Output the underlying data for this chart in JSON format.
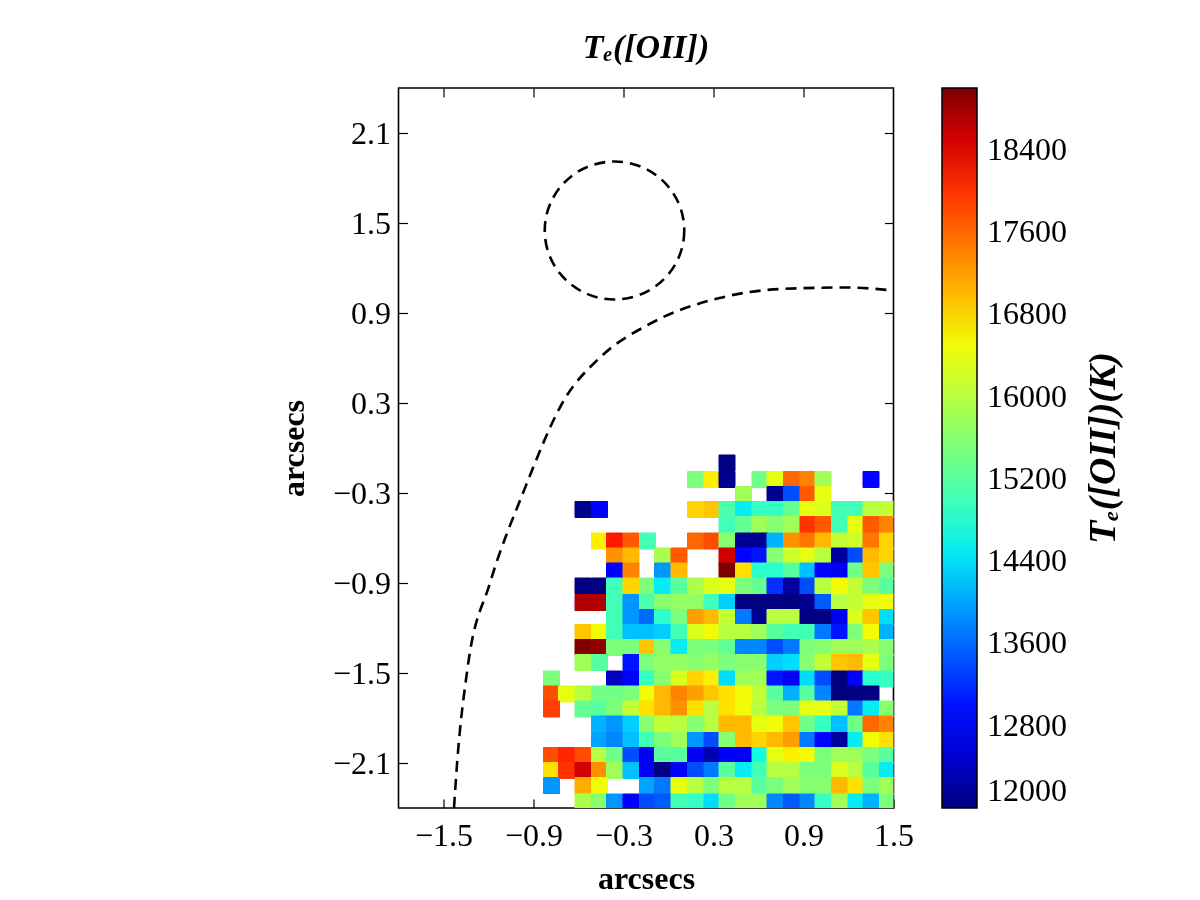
{
  "chart_data": {
    "type": "scatter",
    "title": "Tₑ([OII])",
    "xlabel": "arcsecs",
    "ylabel": "arcsecs",
    "clabel": "Tₑ([OII])(K)",
    "xlim": [
      -1.8,
      1.5
    ],
    "ylim": [
      -2.4,
      2.4
    ],
    "xticks": [
      -1.5,
      -0.9,
      -0.3,
      0.3,
      0.9,
      1.5
    ],
    "yticks": [
      -2.1,
      -1.5,
      -0.9,
      -0.3,
      0.3,
      0.9,
      1.5,
      2.1
    ],
    "clim": [
      12000,
      19000
    ],
    "cticks": [
      12000,
      12800,
      13600,
      14400,
      15200,
      16000,
      16800,
      17600,
      18400
    ],
    "marker": "square",
    "x": [
      0.39,
      0.18,
      0.29,
      0.39,
      0.61,
      0.71,
      0.82,
      0.93,
      1.03,
      1.35,
      0.5,
      0.71,
      0.82,
      0.93,
      1.03,
      -0.57,
      -0.46,
      0.18,
      0.29,
      0.39,
      0.5,
      0.61,
      0.71,
      0.82,
      0.93,
      1.03,
      1.14,
      1.25,
      1.35,
      1.46,
      0.39,
      0.5,
      0.61,
      0.71,
      0.82,
      0.93,
      1.03,
      1.14,
      1.25,
      1.35,
      1.46,
      -0.46,
      -0.36,
      -0.25,
      -0.14,
      0.18,
      0.29,
      0.39,
      0.5,
      0.61,
      0.71,
      0.82,
      0.93,
      1.03,
      1.14,
      1.25,
      1.35,
      1.46,
      -0.36,
      -0.25,
      -0.04,
      0.07,
      0.39,
      0.5,
      0.61,
      0.71,
      0.82,
      0.93,
      1.03,
      1.14,
      1.25,
      1.35,
      1.46,
      -0.36,
      -0.25,
      -0.04,
      0.07,
      0.39,
      0.5,
      0.61,
      0.71,
      0.82,
      0.93,
      1.03,
      1.14,
      1.25,
      1.35,
      1.46,
      -0.57,
      -0.46,
      -0.36,
      -0.25,
      -0.14,
      -0.04,
      0.07,
      0.18,
      0.29,
      0.39,
      0.5,
      0.61,
      0.71,
      0.82,
      0.93,
      1.03,
      1.14,
      1.25,
      1.35,
      1.46,
      -0.57,
      -0.46,
      -0.36,
      -0.25,
      -0.14,
      -0.04,
      0.07,
      0.18,
      0.29,
      0.39,
      0.5,
      0.61,
      0.71,
      0.82,
      0.93,
      1.03,
      1.14,
      1.25,
      1.35,
      1.46,
      -0.36,
      -0.25,
      -0.14,
      -0.04,
      0.07,
      0.18,
      0.29,
      0.39,
      0.5,
      0.61,
      0.71,
      0.82,
      0.93,
      1.03,
      1.14,
      1.25,
      1.35,
      1.46,
      -0.57,
      -0.46,
      -0.36,
      -0.25,
      -0.14,
      -0.04,
      0.07,
      0.18,
      0.29,
      0.39,
      0.5,
      0.61,
      0.71,
      0.82,
      0.93,
      1.03,
      1.14,
      1.25,
      1.35,
      1.46,
      -0.57,
      -0.46,
      -0.36,
      -0.25,
      -0.14,
      -0.04,
      0.07,
      0.18,
      0.29,
      0.39,
      0.5,
      0.61,
      0.71,
      0.82,
      0.93,
      1.03,
      1.14,
      1.25,
      1.35,
      1.46,
      -0.57,
      -0.46,
      -0.25,
      -0.14,
      -0.04,
      0.07,
      0.18,
      0.29,
      0.39,
      0.5,
      0.61,
      0.71,
      0.82,
      0.93,
      1.03,
      1.14,
      1.25,
      1.35,
      1.46,
      -0.78,
      -0.36,
      -0.25,
      -0.14,
      -0.04,
      0.07,
      0.18,
      0.29,
      0.39,
      0.5,
      0.61,
      0.71,
      0.82,
      0.93,
      1.03,
      1.14,
      1.25,
      1.35,
      1.46,
      -0.78,
      -0.68,
      -0.57,
      -0.46,
      -0.36,
      -0.25,
      -0.14,
      -0.04,
      0.07,
      0.18,
      0.29,
      0.39,
      0.5,
      0.61,
      0.71,
      0.82,
      0.93,
      1.03,
      1.14,
      1.25,
      1.35,
      -0.78,
      -0.57,
      -0.46,
      -0.36,
      -0.25,
      -0.14,
      -0.04,
      0.07,
      0.18,
      0.29,
      0.39,
      0.5,
      0.61,
      0.71,
      0.82,
      0.93,
      1.03,
      1.14,
      1.25,
      1.35,
      1.46,
      -0.46,
      -0.36,
      -0.25,
      -0.14,
      -0.04,
      0.07,
      0.18,
      0.29,
      0.39,
      0.5,
      0.61,
      0.71,
      0.82,
      0.93,
      1.03,
      1.14,
      1.25,
      1.35,
      1.46,
      -0.46,
      -0.36,
      -0.25,
      -0.14,
      -0.04,
      0.07,
      0.18,
      0.29,
      0.39,
      0.5,
      0.61,
      0.71,
      0.82,
      0.93,
      1.03,
      1.14,
      1.25,
      1.35,
      1.46,
      -0.78,
      -0.68,
      -0.57,
      -0.46,
      -0.36,
      -0.25,
      -0.14,
      -0.04,
      0.07,
      0.18,
      0.29,
      0.39,
      0.5,
      0.61,
      0.71,
      0.82,
      0.93,
      1.03,
      1.14,
      1.25,
      1.35,
      1.46,
      -0.78,
      -0.68,
      -0.57,
      -0.46,
      -0.36,
      -0.25,
      -0.14,
      -0.04,
      0.07,
      0.18,
      0.29,
      0.39,
      0.5,
      0.61,
      0.71,
      0.82,
      0.93,
      1.03,
      1.14,
      1.25,
      1.35,
      1.46,
      -0.78,
      -0.57,
      -0.46,
      -0.14,
      -0.04,
      0.07,
      0.18,
      0.29,
      0.39,
      0.5,
      0.61,
      0.71,
      0.82,
      0.93,
      1.03,
      1.14,
      1.25,
      1.35,
      1.46,
      -0.57,
      -0.46,
      -0.36,
      -0.25,
      -0.14,
      -0.04,
      0.07,
      0.18,
      0.29,
      0.39,
      0.5,
      0.61,
      0.71,
      0.82,
      0.93,
      1.03,
      1.14,
      1.25,
      1.35,
      1.46
    ],
    "values": [
      -0.1,
      -0.21,
      -0.21,
      -0.21,
      -0.21,
      -0.21,
      -0.21,
      -0.21,
      -0.21,
      -0.21,
      -0.31,
      -0.31,
      -0.31,
      -0.31,
      -0.31,
      -0.41,
      -0.41,
      -0.41,
      -0.41,
      -0.41,
      -0.41,
      -0.41,
      -0.41,
      -0.41,
      -0.41,
      -0.41,
      -0.41,
      -0.41,
      -0.41,
      -0.41,
      -0.51,
      -0.51,
      -0.51,
      -0.51,
      -0.51,
      -0.51,
      -0.51,
      -0.51,
      -0.51,
      -0.51,
      -0.51,
      -0.62,
      -0.62,
      -0.62,
      -0.62,
      -0.62,
      -0.62,
      -0.62,
      -0.62,
      -0.62,
      -0.62,
      -0.62,
      -0.62,
      -0.62,
      -0.62,
      -0.62,
      -0.62,
      -0.62,
      -0.72,
      -0.72,
      -0.72,
      -0.72,
      -0.72,
      -0.72,
      -0.72,
      -0.72,
      -0.72,
      -0.72,
      -0.72,
      -0.72,
      -0.72,
      -0.72,
      -0.72,
      -0.82,
      -0.82,
      -0.82,
      -0.82,
      -0.82,
      -0.82,
      -0.82,
      -0.82,
      -0.82,
      -0.82,
      -0.82,
      -0.82,
      -0.82,
      -0.82,
      -0.82,
      -0.92,
      -0.92,
      -0.92,
      -0.92,
      -0.92,
      -0.92,
      -0.92,
      -0.92,
      -0.92,
      -0.92,
      -0.92,
      -0.92,
      -0.92,
      -0.92,
      -0.92,
      -0.92,
      -0.92,
      -0.92,
      -0.92,
      -0.92,
      -1.03,
      -1.03,
      -1.03,
      -1.03,
      -1.03,
      -1.03,
      -1.03,
      -1.03,
      -1.03,
      -1.03,
      -1.03,
      -1.03,
      -1.03,
      -1.03,
      -1.03,
      -1.03,
      -1.03,
      -1.03,
      -1.03,
      -1.03,
      -1.13,
      -1.13,
      -1.13,
      -1.13,
      -1.13,
      -1.13,
      -1.13,
      -1.13,
      -1.13,
      -1.13,
      -1.13,
      -1.13,
      -1.13,
      -1.13,
      -1.13,
      -1.13,
      -1.13,
      -1.13,
      -1.23,
      -1.23,
      -1.23,
      -1.23,
      -1.23,
      -1.23,
      -1.23,
      -1.23,
      -1.23,
      -1.23,
      -1.23,
      -1.23,
      -1.23,
      -1.23,
      -1.23,
      -1.23,
      -1.23,
      -1.23,
      -1.23,
      -1.23,
      -1.33,
      -1.33,
      -1.33,
      -1.33,
      -1.33,
      -1.33,
      -1.33,
      -1.33,
      -1.33,
      -1.33,
      -1.33,
      -1.33,
      -1.33,
      -1.33,
      -1.33,
      -1.33,
      -1.33,
      -1.33,
      -1.33,
      -1.33,
      -1.43,
      -1.43,
      -1.43,
      -1.43,
      -1.43,
      -1.43,
      -1.43,
      -1.43,
      -1.43,
      -1.43,
      -1.43,
      -1.43,
      -1.43,
      -1.43,
      -1.43,
      -1.43,
      -1.43,
      -1.43,
      -1.43,
      -1.54,
      -1.54,
      -1.54,
      -1.54,
      -1.54,
      -1.54,
      -1.54,
      -1.54,
      -1.54,
      -1.54,
      -1.54,
      -1.54,
      -1.54,
      -1.54,
      -1.54,
      -1.54,
      -1.54,
      -1.54,
      -1.54,
      -1.64,
      -1.64,
      -1.64,
      -1.64,
      -1.64,
      -1.64,
      -1.64,
      -1.64,
      -1.64,
      -1.64,
      -1.64,
      -1.64,
      -1.64,
      -1.64,
      -1.64,
      -1.64,
      -1.64,
      -1.64,
      -1.64,
      -1.64,
      -1.64,
      -1.74,
      -1.74,
      -1.74,
      -1.74,
      -1.74,
      -1.74,
      -1.74,
      -1.74,
      -1.74,
      -1.74,
      -1.74,
      -1.74,
      -1.74,
      -1.74,
      -1.74,
      -1.74,
      -1.74,
      -1.74,
      -1.74,
      -1.74,
      -1.74,
      -1.84,
      -1.84,
      -1.84,
      -1.84,
      -1.84,
      -1.84,
      -1.84,
      -1.84,
      -1.84,
      -1.84,
      -1.84,
      -1.84,
      -1.84,
      -1.84,
      -1.84,
      -1.84,
      -1.84,
      -1.84,
      -1.84,
      -1.95,
      -1.95,
      -1.95,
      -1.95,
      -1.95,
      -1.95,
      -1.95,
      -1.95,
      -1.95,
      -1.95,
      -1.95,
      -1.95,
      -1.95,
      -1.95,
      -1.95,
      -1.95,
      -1.95,
      -1.95,
      -1.95,
      -2.05,
      -2.05,
      -2.05,
      -2.05,
      -2.05,
      -2.05,
      -2.05,
      -2.05,
      -2.05,
      -2.05,
      -2.05,
      -2.05,
      -2.05,
      -2.05,
      -2.05,
      -2.05,
      -2.05,
      -2.05,
      -2.05,
      -2.05,
      -2.05,
      -2.05,
      -2.15,
      -2.15,
      -2.15,
      -2.15,
      -2.15,
      -2.15,
      -2.15,
      -2.15,
      -2.15,
      -2.15,
      -2.15,
      -2.15,
      -2.15,
      -2.15,
      -2.15,
      -2.15,
      -2.15,
      -2.15,
      -2.15,
      -2.15,
      -2.15,
      -2.15,
      -2.25,
      -2.25,
      -2.25,
      -2.25,
      -2.25,
      -2.25,
      -2.25,
      -2.25,
      -2.25,
      -2.25,
      -2.25,
      -2.25,
      -2.25,
      -2.25,
      -2.25,
      -2.25,
      -2.25,
      -2.25,
      -2.25,
      -2.36,
      -2.36,
      -2.36,
      -2.36,
      -2.36,
      -2.36,
      -2.36,
      -2.36,
      -2.36,
      -2.36,
      -2.36,
      -2.36,
      -2.36,
      -2.36,
      -2.36,
      -2.36,
      -2.36,
      -2.36,
      -2.36,
      -2.36
    ],
    "cvalues": [
      12000,
      15500,
      16600,
      12100,
      15400,
      16400,
      17600,
      17400,
      15800,
      12900,
      15800,
      12100,
      13400,
      17700,
      16400,
      12100,
      12800,
      16800,
      16900,
      15100,
      14500,
      14900,
      14900,
      15300,
      16400,
      16300,
      15000,
      15000,
      16000,
      16100,
      15000,
      15300,
      15800,
      15600,
      15800,
      18000,
      17700,
      15000,
      16400,
      17700,
      17400,
      16600,
      18200,
      17700,
      15000,
      17600,
      17800,
      15600,
      12100,
      12100,
      14100,
      17300,
      17500,
      17000,
      16100,
      16200,
      17500,
      16800,
      17300,
      17000,
      15900,
      17700,
      18500,
      12900,
      13000,
      15600,
      16200,
      16400,
      16000,
      12200,
      13400,
      17000,
      16800,
      12800,
      17400,
      13900,
      17000,
      19000,
      16700,
      14800,
      14800,
      15200,
      14200,
      12900,
      12700,
      15400,
      16900,
      15500,
      12000,
      12000,
      15000,
      16800,
      15500,
      14500,
      15200,
      15900,
      16300,
      16400,
      15500,
      15300,
      13200,
      12200,
      13400,
      16000,
      16500,
      16100,
      15500,
      15200,
      18700,
      18700,
      15000,
      13900,
      15100,
      15600,
      15700,
      15700,
      15000,
      14300,
      12000,
      12000,
      12000,
      12000,
      12100,
      13500,
      16000,
      16100,
      16400,
      16500,
      15000,
      13900,
      13600,
      14800,
      15500,
      17200,
      17000,
      16100,
      13700,
      12100,
      16000,
      16000,
      12000,
      12000,
      12700,
      16300,
      16900,
      14400,
      16900,
      16500,
      15000,
      14200,
      14200,
      14300,
      15000,
      16300,
      16500,
      16000,
      16000,
      15800,
      15200,
      15000,
      15000,
      13700,
      13000,
      15500,
      16500,
      14100,
      19000,
      18900,
      15500,
      15500,
      16900,
      15600,
      14500,
      15500,
      15500,
      15300,
      13800,
      13800,
      13400,
      13700,
      15500,
      15600,
      15800,
      15800,
      15900,
      15600,
      15800,
      15200,
      13000,
      15500,
      15700,
      15700,
      15600,
      15700,
      15500,
      15600,
      15600,
      14300,
      14400,
      15600,
      16100,
      16900,
      17000,
      16400,
      15500,
      15500,
      12400,
      12800,
      14900,
      15600,
      16300,
      16800,
      16600,
      14400,
      15800,
      15800,
      13000,
      12700,
      14400,
      13400,
      12000,
      12800,
      14800,
      14900,
      17800,
      16400,
      16000,
      15400,
      15400,
      15500,
      16500,
      17000,
      17400,
      17200,
      16900,
      16700,
      16500,
      16100,
      15200,
      14100,
      15200,
      13800,
      12000,
      12000,
      12000,
      17900,
      15300,
      15200,
      15500,
      16100,
      16700,
      17000,
      17300,
      16700,
      16000,
      16700,
      16500,
      16000,
      15500,
      15500,
      16400,
      16400,
      16100,
      13700,
      14500,
      15600,
      14100,
      13900,
      14300,
      15600,
      16100,
      16000,
      15600,
      16000,
      17000,
      17000,
      16400,
      16500,
      16900,
      15400,
      14900,
      14200,
      15400,
      17600,
      17400,
      14000,
      13800,
      14200,
      15000,
      15500,
      15800,
      13900,
      13400,
      15600,
      17000,
      16800,
      17000,
      17200,
      13700,
      12900,
      12200,
      14500,
      16500,
      16700,
      17800,
      18100,
      17800,
      16000,
      15400,
      13400,
      12700,
      15200,
      15200,
      12700,
      12300,
      12700,
      12700,
      14600,
      16400,
      16600,
      16500,
      15500,
      15800,
      15800,
      15500,
      15200,
      16700,
      18000,
      18500,
      17300,
      15800,
      14200,
      12700,
      12000,
      12800,
      13400,
      13700,
      15200,
      14500,
      15000,
      16000,
      16000,
      15500,
      15500,
      16300,
      16000,
      15200,
      14500,
      13900,
      17100,
      16500,
      14000,
      13700,
      16400,
      16000,
      15500,
      16000,
      16000,
      15200,
      15500,
      15800,
      15600,
      15600,
      17000,
      16700,
      15500,
      15800,
      15900,
      15600,
      13900,
      12800,
      13400,
      13500,
      15000,
      14900,
      14400,
      15400,
      15800,
      15800,
      13800,
      13500,
      13800,
      14900,
      15800,
      14500,
      14100,
      15500
    ],
    "colors": [
      "#000080",
      "#7bff7b",
      "#fdef00",
      "#000090",
      "#70ff87",
      "#e5ff12",
      "#ff6800",
      "#ff8300",
      "#9fff58",
      "#0004ff",
      "#9fff58",
      "#000090",
      "#004dff",
      "#ff5a00",
      "#e5ff12",
      "#000090",
      "#0000ff",
      "#ffd400",
      "#ffc600",
      "#4cffaa",
      "#06edf1",
      "#35ffc2",
      "#35ffc2",
      "#64ff93",
      "#e5ff12",
      "#d9ff1d",
      "#41ffb6",
      "#41ffb6",
      "#b6ff41",
      "#c2ff35",
      "#41ffb6",
      "#64ff93",
      "#9fff58",
      "#87ff70",
      "#9fff58",
      "#ff3200",
      "#ff5a00",
      "#41ffb6",
      "#e5ff12",
      "#ff5a00",
      "#ff8300",
      "#fdef00",
      "#ff1700",
      "#ff5a00",
      "#41ffb6",
      "#ff6800",
      "#ff4d00",
      "#87ff70",
      "#000090",
      "#000090",
      "#00b3ff",
      "#ff9000",
      "#ff7500",
      "#ffb900",
      "#c2ff35",
      "#ceff29",
      "#ff7500",
      "#ffd400",
      "#ff9000",
      "#ffb900",
      "#aaff4c",
      "#ff5a00",
      "#d20000",
      "#0004ff",
      "#0012ff",
      "#87ff70",
      "#ceff29",
      "#e5ff12",
      "#b6ff41",
      "#0000a1",
      "#004dff",
      "#ffb900",
      "#ffd400",
      "#0000ff",
      "#ff8300",
      "#0095ff",
      "#ffb900",
      "#800000",
      "#ffe100",
      "#29ffce",
      "#29ffce",
      "#58ff9f",
      "#00c1ff",
      "#0004ff",
      "#0000f3",
      "#70ff87",
      "#ffc600",
      "#7bff7b",
      "#000080",
      "#000080",
      "#41ffb6",
      "#ffd400",
      "#7bff7b",
      "#06edf1",
      "#58ff9f",
      "#aaff4c",
      "#d9ff1d",
      "#e5ff12",
      "#7bff7b",
      "#64ff93",
      "#002fff",
      "#0000a1",
      "#004dff",
      "#b6ff41",
      "#f1fc06",
      "#c2ff35",
      "#7bff7b",
      "#58ff9f",
      "#b10000",
      "#b10000",
      "#41ffb6",
      "#0095ff",
      "#4cffaa",
      "#87ff70",
      "#93ff64",
      "#93ff64",
      "#41ffb6",
      "#00d0ff",
      "#000080",
      "#000080",
      "#000080",
      "#000080",
      "#000090",
      "#005bff",
      "#b6ff41",
      "#c2ff35",
      "#e5ff12",
      "#f1fc06",
      "#41ffb6",
      "#0095ff",
      "#006aff",
      "#29ffce",
      "#7bff7b",
      "#ff9e00",
      "#ffb900",
      "#c2ff35",
      "#0078ff",
      "#000090",
      "#b6ff41",
      "#b6ff41",
      "#000080",
      "#000080",
      "#0000f3",
      "#d9ff1d",
      "#ffc600",
      "#00defd",
      "#ffc600",
      "#f1fc06",
      "#41ffb6",
      "#00c1ff",
      "#00c1ff",
      "#00d0ff",
      "#41ffb6",
      "#d9ff1d",
      "#f1fc06",
      "#b6ff41",
      "#b6ff41",
      "#9fff58",
      "#58ff9f",
      "#41ffb6",
      "#41ffb6",
      "#0078ff",
      "#0012ff",
      "#7bff7b",
      "#f1fc06",
      "#00b3ff",
      "#800000",
      "#900000",
      "#7bff7b",
      "#7bff7b",
      "#ffc600",
      "#87ff70",
      "#06edf1",
      "#7bff7b",
      "#7bff7b",
      "#64ff93",
      "#0087ff",
      "#0087ff",
      "#004dff",
      "#0078ff",
      "#7bff7b",
      "#87ff70",
      "#9fff58",
      "#9fff58",
      "#aaff4c",
      "#87ff70",
      "#9fff58",
      "#58ff9f",
      "#0012ff",
      "#7bff7b",
      "#93ff64",
      "#93ff64",
      "#87ff70",
      "#93ff64",
      "#7bff7b",
      "#87ff70",
      "#87ff70",
      "#00d0ff",
      "#00defd",
      "#87ff70",
      "#c2ff35",
      "#ffc600",
      "#ffb900",
      "#e5ff12",
      "#7bff7b",
      "#7bff7b",
      "#0000c2",
      "#0000ff",
      "#35ffc2",
      "#87ff70",
      "#d9ff1d",
      "#ffd400",
      "#fdef00",
      "#00defd",
      "#9fff58",
      "#9fff58",
      "#0012ff",
      "#0000f3",
      "#00defd",
      "#004dff",
      "#000080",
      "#0000ff",
      "#29ffce",
      "#35ffc2",
      "#ff4d00",
      "#e5ff12",
      "#b6ff41",
      "#70ff87",
      "#70ff87",
      "#7bff7b",
      "#f1fc06",
      "#ffb900",
      "#ff8300",
      "#ff9e00",
      "#ffc600",
      "#ffe100",
      "#f1fc06",
      "#c2ff35",
      "#58ff9f",
      "#00b3ff",
      "#58ff9f",
      "#0087ff",
      "#000080",
      "#000080",
      "#000080",
      "#ff3f00",
      "#64ff93",
      "#58ff9f",
      "#7bff7b",
      "#c2ff35",
      "#ffe100",
      "#ffb900",
      "#ff9000",
      "#ffe100",
      "#b6ff41",
      "#ffe100",
      "#f1fc06",
      "#b6ff41",
      "#7bff7b",
      "#7bff7b",
      "#e5ff12",
      "#e5ff12",
      "#c2ff35",
      "#0078ff",
      "#06edf1",
      "#87ff70",
      "#00b3ff",
      "#0095ff",
      "#00d0ff",
      "#87ff70",
      "#c2ff35",
      "#b6ff41",
      "#87ff70",
      "#b6ff41",
      "#ffb900",
      "#ffb900",
      "#e5ff12",
      "#f1fc06",
      "#ffc600",
      "#70ff87",
      "#35ffc2",
      "#00c1ff",
      "#70ff87",
      "#ff6800",
      "#ff8300",
      "#00a4ff",
      "#0087ff",
      "#00c1ff",
      "#41ffb6",
      "#7bff7b",
      "#9fff58",
      "#0095ff",
      "#004dff",
      "#87ff70",
      "#ffb900",
      "#ffd400",
      "#ffb900",
      "#ff9e00",
      "#0078ff",
      "#0004ff",
      "#0000a1",
      "#06edf1",
      "#f1fc06",
      "#ffe100",
      "#ff4d00",
      "#ff2400",
      "#ff4d00",
      "#b6ff41",
      "#70ff87",
      "#004dff",
      "#0000f3",
      "#58ff9f",
      "#58ff9f",
      "#0000f3",
      "#0000b1",
      "#0000f3",
      "#0000f3",
      "#12fbe5",
      "#e5ff12",
      "#fdef00",
      "#f1fc06",
      "#7bff7b",
      "#9fff58",
      "#9fff58",
      "#7bff7b",
      "#58ff9f",
      "#ffe100",
      "#ff3200",
      "#d20000",
      "#ff9000",
      "#9fff58",
      "#00c1ff",
      "#0000f3",
      "#000080",
      "#0000ff",
      "#004dff",
      "#0078ff",
      "#58ff9f",
      "#06edf1",
      "#41ffb6",
      "#b6ff41",
      "#b6ff41",
      "#7bff7b",
      "#7bff7b",
      "#d9ff1d",
      "#b6ff41",
      "#58ff9f",
      "#06edf1",
      "#0095ff",
      "#ffab00",
      "#f1fc06",
      "#00a4ff",
      "#0078ff",
      "#e5ff12",
      "#b6ff41",
      "#7bff7b",
      "#b6ff41",
      "#b6ff41",
      "#58ff9f",
      "#7bff7b",
      "#9fff58",
      "#87ff70",
      "#87ff70",
      "#ffb900",
      "#ffe100",
      "#7bff7b",
      "#9fff58",
      "#aaff4c",
      "#87ff70",
      "#0095ff",
      "#0000ff",
      "#004dff",
      "#005bff",
      "#41ffb6",
      "#35ffc2",
      "#00defd",
      "#70ff87",
      "#9fff58",
      "#9fff58",
      "#0087ff",
      "#005bff",
      "#0087ff",
      "#35ffc2",
      "#9fff58",
      "#06edf1",
      "#00b3ff",
      "#7bff7b"
    ],
    "series": [
      {
        "type": "line",
        "color": "#000000",
        "line_style": "dashed",
        "marker": "none",
        "x": [
          -1.43,
          -1.41,
          -1.34,
          -1.19,
          -0.97,
          -0.69,
          -0.46,
          -0.12,
          0.34,
          0.75,
          1.18,
          1.5
        ],
        "values": [
          -2.4,
          -2.11,
          -1.47,
          -0.9,
          -0.3,
          0.33,
          0.6,
          0.83,
          1.0,
          1.06,
          1.07,
          1.05
        ]
      }
    ]
  }
}
